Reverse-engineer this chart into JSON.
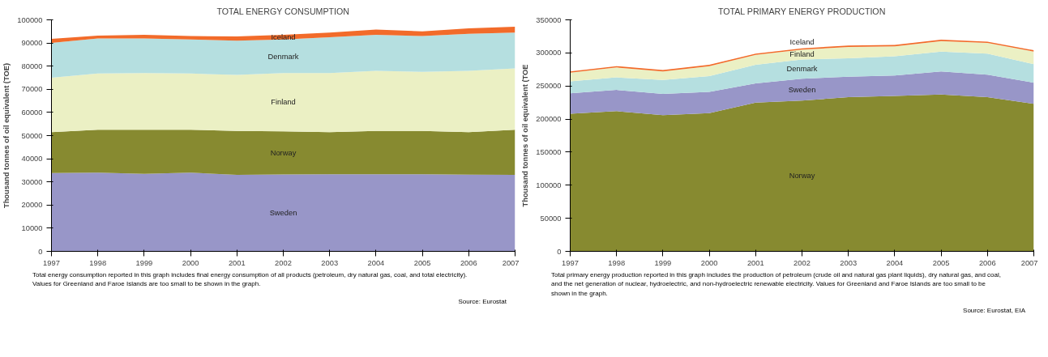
{
  "chart_data": [
    {
      "type": "area",
      "stacked": true,
      "title": "TOTAL ENERGY CONSUMPTION",
      "ylabel": "Thousand tonnes of oil equivalent (TOE)",
      "x": [
        1997,
        1998,
        1999,
        2000,
        2001,
        2002,
        2003,
        2004,
        2005,
        2006,
        2007
      ],
      "xlim": [
        1997,
        2007
      ],
      "xticks": [
        1997,
        1998,
        1999,
        2000,
        2001,
        2002,
        2003,
        2004,
        2005,
        2006,
        2007
      ],
      "ylim": [
        0,
        100000
      ],
      "yticks": [
        0,
        10000,
        20000,
        30000,
        40000,
        50000,
        60000,
        70000,
        80000,
        90000,
        100000
      ],
      "series": [
        {
          "name": "Sweden",
          "color": "#9896c8",
          "values": [
            33800,
            34000,
            33500,
            34000,
            33000,
            33200,
            33300,
            33300,
            33300,
            33100,
            33000
          ]
        },
        {
          "name": "Norway",
          "color": "#878a30",
          "values": [
            17700,
            18500,
            19000,
            18500,
            19000,
            18600,
            18200,
            18700,
            18700,
            18400,
            19500
          ]
        },
        {
          "name": "Finland",
          "color": "#ebf0c4",
          "values": [
            23500,
            24300,
            24500,
            24300,
            24200,
            25200,
            25500,
            26000,
            25500,
            26500,
            26500
          ]
        },
        {
          "name": "Denmark",
          "color": "#b5dfe0",
          "values": [
            15000,
            15200,
            15000,
            14700,
            14800,
            14500,
            15500,
            15500,
            15500,
            16000,
            15500
          ]
        },
        {
          "name": "Iceland",
          "color": "#f26b2a",
          "values": [
            1800,
            1200,
            1500,
            1500,
            1800,
            2000,
            2000,
            2300,
            2000,
            2300,
            2500
          ]
        }
      ],
      "annotations": [
        "Total energy consumption reported in this graph includes final energy consumption of all products (petroleum, dry natural gas, coal, and total electricity). Values for Greenland and Faroe Islands are too small to be shown in the graph.",
        "Source: Eurostat"
      ]
    },
    {
      "type": "area",
      "stacked": true,
      "title": "TOTAL PRIMARY ENERGY PRODUCTION",
      "ylabel": "Thousand tonnes of oil equivalent (TOE",
      "x": [
        1997,
        1998,
        1999,
        2000,
        2001,
        2002,
        2003,
        2004,
        2005,
        2006,
        2007
      ],
      "xlim": [
        1997,
        2007
      ],
      "xticks": [
        1997,
        1998,
        1999,
        2000,
        2001,
        2002,
        2003,
        2004,
        2005,
        2006,
        2007
      ],
      "ylim": [
        0,
        350000
      ],
      "yticks": [
        0,
        50000,
        100000,
        150000,
        200000,
        250000,
        300000,
        350000
      ],
      "series": [
        {
          "name": "Norway",
          "color": "#878a30",
          "values": [
            208000,
            212000,
            206000,
            209000,
            225000,
            228000,
            233000,
            235000,
            237000,
            233000,
            223000
          ]
        },
        {
          "name": "Sweden",
          "color": "#9896c8",
          "values": [
            31000,
            32000,
            32000,
            32000,
            29000,
            33000,
            31000,
            31000,
            35000,
            34000,
            32000
          ]
        },
        {
          "name": "Denmark",
          "color": "#b5dfe0",
          "values": [
            18000,
            19000,
            21000,
            24000,
            28000,
            29000,
            28000,
            29000,
            30000,
            32000,
            28000
          ]
        },
        {
          "name": "Finland",
          "color": "#ebf0c4",
          "values": [
            13000,
            15000,
            13000,
            15000,
            15000,
            15000,
            17000,
            15000,
            16000,
            16000,
            19000
          ]
        },
        {
          "name": "Iceland",
          "color": "#f26b2a",
          "values": [
            2000,
            2000,
            2000,
            2000,
            2000,
            2000,
            2000,
            2000,
            2000,
            2000,
            2000
          ]
        }
      ],
      "annotations": [
        "Total primary energy production reported in this graph includes the production of petroleum (crude oil and natural gas plant liquids), dry natural gas, and coal, and the net generation of nuclear, hydroelectric, and non-hydroelectric renewable electricity. Values for Greenland and Faroe Islands are too small to be shown in the graph.",
        "Source: Eurostat, EIA"
      ]
    }
  ]
}
